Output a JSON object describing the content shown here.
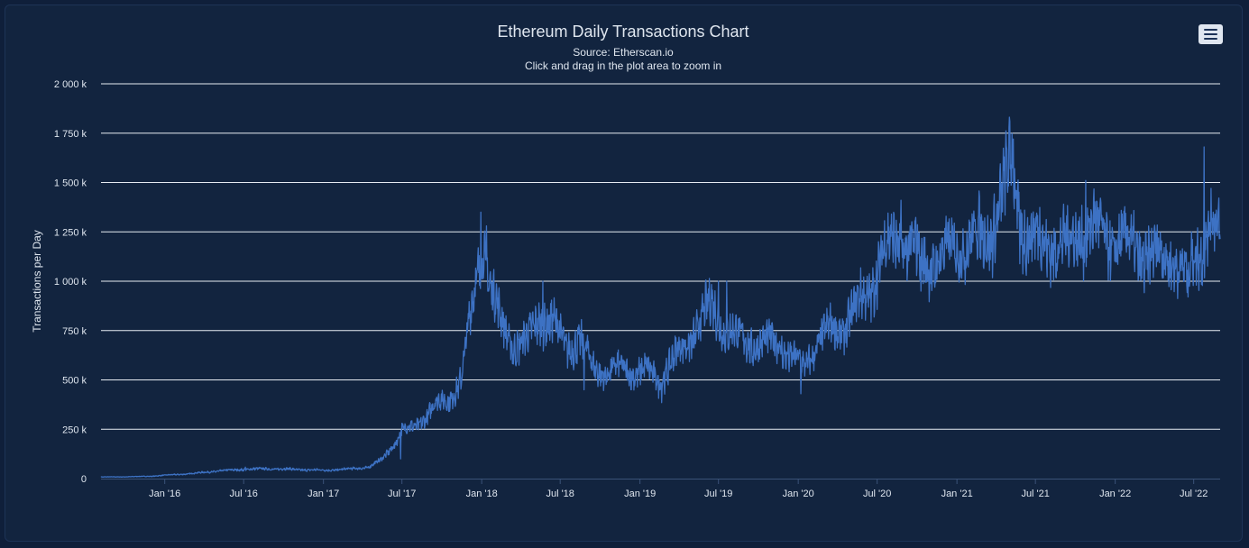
{
  "chart_data": {
    "type": "line",
    "title": "Ethereum Daily Transactions Chart",
    "subtitle": "Source: Etherscan.io",
    "hint": "Click and drag in the plot area to zoom in",
    "ylabel": "Transactions per Day",
    "xlabel": "",
    "ylim": [
      0,
      2000000
    ],
    "y_ticks": [
      0,
      250000,
      500000,
      750000,
      1000000,
      1250000,
      1500000,
      1750000,
      2000000
    ],
    "y_tick_labels": [
      "0",
      "250 k",
      "500 k",
      "750 k",
      "1 000 k",
      "1 250 k",
      "1 500 k",
      "1 750 k",
      "2 000 k"
    ],
    "x_range": [
      "2015-08-07",
      "2022-08-31"
    ],
    "x_ticks": [
      "2016-01-01",
      "2016-07-01",
      "2017-01-01",
      "2017-07-01",
      "2018-01-01",
      "2018-07-01",
      "2019-01-01",
      "2019-07-01",
      "2020-01-01",
      "2020-07-01",
      "2021-01-01",
      "2021-07-01",
      "2022-01-01",
      "2022-07-01"
    ],
    "x_tick_labels": [
      "Jan '16",
      "Jul '16",
      "Jan '17",
      "Jul '17",
      "Jan '18",
      "Jul '18",
      "Jan '19",
      "Jul '19",
      "Jan '20",
      "Jul '20",
      "Jan '21",
      "Jul '21",
      "Jan '22",
      "Jul '22"
    ],
    "grid": true,
    "legend": "none",
    "series": [
      {
        "name": "Transactions per Day",
        "color": "#3d72c4",
        "points": [
          [
            "2015-08-07",
            8000
          ],
          [
            "2015-10-01",
            9000
          ],
          [
            "2015-12-01",
            12000
          ],
          [
            "2016-01-01",
            17000
          ],
          [
            "2016-03-01",
            25000
          ],
          [
            "2016-05-01",
            38000
          ],
          [
            "2016-07-01",
            47000
          ],
          [
            "2016-09-01",
            50000
          ],
          [
            "2016-11-01",
            46000
          ],
          [
            "2017-01-01",
            42000
          ],
          [
            "2017-03-01",
            48000
          ],
          [
            "2017-04-15",
            58000
          ],
          [
            "2017-05-15",
            95000
          ],
          [
            "2017-06-15",
            180000
          ],
          [
            "2017-07-01",
            245000
          ],
          [
            "2017-08-01",
            262000
          ],
          [
            "2017-08-25",
            315000
          ],
          [
            "2017-09-15",
            375000
          ],
          [
            "2017-10-15",
            395000
          ],
          [
            "2017-11-15",
            505000
          ],
          [
            "2017-12-10",
            880000
          ],
          [
            "2017-12-25",
            1080000
          ],
          [
            "2018-01-05",
            1210000
          ],
          [
            "2018-01-20",
            980000
          ],
          [
            "2018-02-15",
            790000
          ],
          [
            "2018-03-15",
            680000
          ],
          [
            "2018-04-15",
            690000
          ],
          [
            "2018-05-15",
            820000
          ],
          [
            "2018-06-15",
            790000
          ],
          [
            "2018-07-15",
            660000
          ],
          [
            "2018-08-15",
            710000
          ],
          [
            "2018-09-15",
            560000
          ],
          [
            "2018-10-15",
            540000
          ],
          [
            "2018-11-15",
            555000
          ],
          [
            "2018-12-15",
            545000
          ],
          [
            "2019-01-15",
            545000
          ],
          [
            "2019-02-15",
            495000
          ],
          [
            "2019-03-15",
            595000
          ],
          [
            "2019-04-15",
            670000
          ],
          [
            "2019-05-15",
            780000
          ],
          [
            "2019-06-15",
            880000
          ],
          [
            "2019-07-10",
            780000
          ],
          [
            "2019-08-15",
            710000
          ],
          [
            "2019-09-15",
            690000
          ],
          [
            "2019-10-15",
            680000
          ],
          [
            "2019-11-15",
            700000
          ],
          [
            "2019-12-15",
            610000
          ],
          [
            "2020-01-15",
            570000
          ],
          [
            "2020-02-15",
            690000
          ],
          [
            "2020-03-15",
            750000
          ],
          [
            "2020-04-15",
            770000
          ],
          [
            "2020-05-15",
            870000
          ],
          [
            "2020-06-15",
            960000
          ],
          [
            "2020-07-15",
            1140000
          ],
          [
            "2020-08-15",
            1210000
          ],
          [
            "2020-09-15",
            1180000
          ],
          [
            "2020-10-15",
            1090000
          ],
          [
            "2020-11-15",
            1110000
          ],
          [
            "2020-12-15",
            1140000
          ],
          [
            "2021-01-15",
            1200000
          ],
          [
            "2021-02-15",
            1220000
          ],
          [
            "2021-03-15",
            1220000
          ],
          [
            "2021-04-10",
            1390000
          ],
          [
            "2021-05-08",
            1590000
          ],
          [
            "2021-05-25",
            1310000
          ],
          [
            "2021-06-15",
            1230000
          ],
          [
            "2021-07-15",
            1190000
          ],
          [
            "2021-08-15",
            1200000
          ],
          [
            "2021-09-15",
            1170000
          ],
          [
            "2021-10-15",
            1260000
          ],
          [
            "2021-11-15",
            1270000
          ],
          [
            "2021-12-15",
            1210000
          ],
          [
            "2022-01-15",
            1200000
          ],
          [
            "2022-02-15",
            1160000
          ],
          [
            "2022-03-15",
            1130000
          ],
          [
            "2022-04-15",
            1120000
          ],
          [
            "2022-05-15",
            1130000
          ],
          [
            "2022-06-15",
            1010000
          ],
          [
            "2022-07-05",
            1140000
          ],
          [
            "2022-07-25",
            1210000
          ],
          [
            "2022-08-05",
            1290000
          ],
          [
            "2022-08-20",
            1250000
          ],
          [
            "2022-08-31",
            1170000
          ]
        ],
        "spikes": [
          [
            "2016-07-05",
            58000
          ],
          [
            "2017-06-28",
            100000
          ],
          [
            "2017-12-30",
            1350000
          ],
          [
            "2018-01-12",
            1280000
          ],
          [
            "2018-05-22",
            1000000
          ],
          [
            "2018-08-25",
            450000
          ],
          [
            "2019-02-20",
            385000
          ],
          [
            "2019-07-01",
            1000000
          ],
          [
            "2019-07-20",
            1000000
          ],
          [
            "2020-01-07",
            430000
          ],
          [
            "2020-08-25",
            1410000
          ],
          [
            "2020-10-10",
            950000
          ],
          [
            "2021-05-11",
            1720000
          ],
          [
            "2021-10-25",
            1510000
          ],
          [
            "2022-06-18",
            920000
          ],
          [
            "2022-07-25",
            1680000
          ],
          [
            "2022-08-10",
            1470000
          ]
        ]
      }
    ]
  },
  "menu_icon": "hamburger-menu-icon"
}
